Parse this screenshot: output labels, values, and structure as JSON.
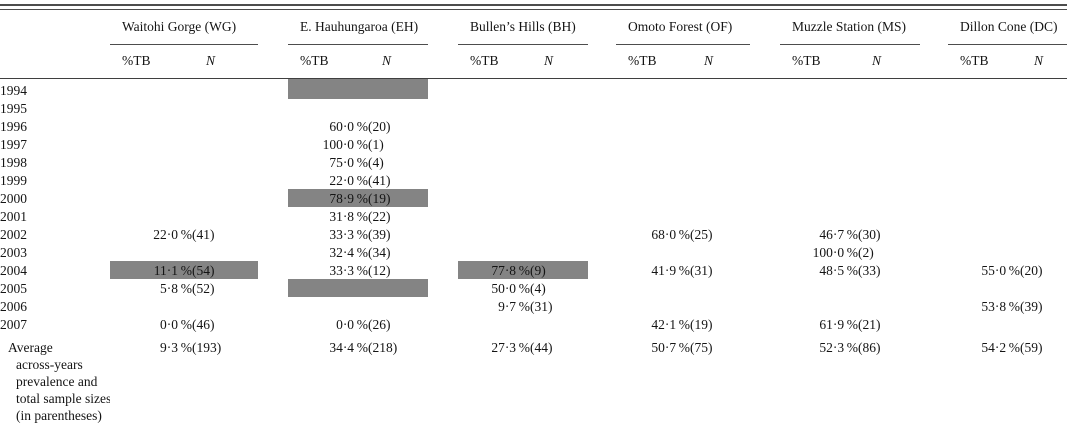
{
  "table": {
    "highlight_color": "#848484",
    "groups": [
      {
        "label": "Waitohi Gorge (WG)"
      },
      {
        "label": "E. Hauhungaroa (EH)"
      },
      {
        "label": "Bullen’s Hills (BH)"
      },
      {
        "label": "Omoto Forest (OF)"
      },
      {
        "label": "Muzzle Station (MS)"
      },
      {
        "label": "Dillon Cone (DC)"
      }
    ],
    "subheaders": {
      "pct": "%TB",
      "n": "N"
    },
    "rows": [
      {
        "year": "1994",
        "cells": [
          {
            "pct": "",
            "n": "",
            "hl": false
          },
          {
            "pct": "",
            "n": "",
            "hl": true
          },
          {
            "pct": "",
            "n": "",
            "hl": false
          },
          {
            "pct": "",
            "n": "",
            "hl": false
          },
          {
            "pct": "",
            "n": "",
            "hl": false
          },
          {
            "pct": "",
            "n": "",
            "hl": false
          }
        ]
      },
      {
        "year": "1995",
        "cells": [
          {
            "pct": "",
            "n": "",
            "hl": false
          },
          {
            "pct": "",
            "n": "",
            "hl": false
          },
          {
            "pct": "",
            "n": "",
            "hl": false
          },
          {
            "pct": "",
            "n": "",
            "hl": false
          },
          {
            "pct": "",
            "n": "",
            "hl": false
          },
          {
            "pct": "",
            "n": "",
            "hl": false
          }
        ]
      },
      {
        "year": "1996",
        "cells": [
          {
            "pct": "",
            "n": "",
            "hl": false
          },
          {
            "pct": "60·0 %",
            "n": "(20)",
            "hl": false
          },
          {
            "pct": "",
            "n": "",
            "hl": false
          },
          {
            "pct": "",
            "n": "",
            "hl": false
          },
          {
            "pct": "",
            "n": "",
            "hl": false
          },
          {
            "pct": "",
            "n": "",
            "hl": false
          }
        ]
      },
      {
        "year": "1997",
        "cells": [
          {
            "pct": "",
            "n": "",
            "hl": false
          },
          {
            "pct": "100·0 %",
            "n": "(1)",
            "hl": false
          },
          {
            "pct": "",
            "n": "",
            "hl": false
          },
          {
            "pct": "",
            "n": "",
            "hl": false
          },
          {
            "pct": "",
            "n": "",
            "hl": false
          },
          {
            "pct": "",
            "n": "",
            "hl": false
          }
        ]
      },
      {
        "year": "1998",
        "cells": [
          {
            "pct": "",
            "n": "",
            "hl": false
          },
          {
            "pct": "75·0 %",
            "n": "(4)",
            "hl": false
          },
          {
            "pct": "",
            "n": "",
            "hl": false
          },
          {
            "pct": "",
            "n": "",
            "hl": false
          },
          {
            "pct": "",
            "n": "",
            "hl": false
          },
          {
            "pct": "",
            "n": "",
            "hl": false
          }
        ]
      },
      {
        "year": "1999",
        "cells": [
          {
            "pct": "",
            "n": "",
            "hl": false
          },
          {
            "pct": "22·0 %",
            "n": "(41)",
            "hl": false
          },
          {
            "pct": "",
            "n": "",
            "hl": false
          },
          {
            "pct": "",
            "n": "",
            "hl": false
          },
          {
            "pct": "",
            "n": "",
            "hl": false
          },
          {
            "pct": "",
            "n": "",
            "hl": false
          }
        ]
      },
      {
        "year": "2000",
        "cells": [
          {
            "pct": "",
            "n": "",
            "hl": false
          },
          {
            "pct": "78·9 %",
            "n": "(19)",
            "hl": true
          },
          {
            "pct": "",
            "n": "",
            "hl": false
          },
          {
            "pct": "",
            "n": "",
            "hl": false
          },
          {
            "pct": "",
            "n": "",
            "hl": false
          },
          {
            "pct": "",
            "n": "",
            "hl": false
          }
        ]
      },
      {
        "year": "2001",
        "cells": [
          {
            "pct": "",
            "n": "",
            "hl": false
          },
          {
            "pct": "31·8 %",
            "n": "(22)",
            "hl": false
          },
          {
            "pct": "",
            "n": "",
            "hl": false
          },
          {
            "pct": "",
            "n": "",
            "hl": false
          },
          {
            "pct": "",
            "n": "",
            "hl": false
          },
          {
            "pct": "",
            "n": "",
            "hl": false
          }
        ]
      },
      {
        "year": "2002",
        "cells": [
          {
            "pct": "22·0 %",
            "n": "(41)",
            "hl": false
          },
          {
            "pct": "33·3 %",
            "n": "(39)",
            "hl": false
          },
          {
            "pct": "",
            "n": "",
            "hl": false
          },
          {
            "pct": "68·0 %",
            "n": "(25)",
            "hl": false
          },
          {
            "pct": "46·7 %",
            "n": "(30)",
            "hl": false
          },
          {
            "pct": "",
            "n": "",
            "hl": false
          }
        ]
      },
      {
        "year": "2003",
        "cells": [
          {
            "pct": "",
            "n": "",
            "hl": false
          },
          {
            "pct": "32·4 %",
            "n": "(34)",
            "hl": false
          },
          {
            "pct": "",
            "n": "",
            "hl": false
          },
          {
            "pct": "",
            "n": "",
            "hl": false
          },
          {
            "pct": "100·0 %",
            "n": "(2)",
            "hl": false
          },
          {
            "pct": "",
            "n": "",
            "hl": false
          }
        ]
      },
      {
        "year": "2004",
        "cells": [
          {
            "pct": "11·1 %",
            "n": "(54)",
            "hl": true
          },
          {
            "pct": "33·3 %",
            "n": "(12)",
            "hl": false
          },
          {
            "pct": "77·8 %",
            "n": "(9)",
            "hl": true
          },
          {
            "pct": "41·9 %",
            "n": "(31)",
            "hl": false
          },
          {
            "pct": "48·5 %",
            "n": "(33)",
            "hl": false
          },
          {
            "pct": "55·0 %",
            "n": "(20)",
            "hl": false
          }
        ]
      },
      {
        "year": "2005",
        "cells": [
          {
            "pct": "5·8 %",
            "n": "(52)",
            "hl": false
          },
          {
            "pct": "",
            "n": "",
            "hl": true
          },
          {
            "pct": "50·0 %",
            "n": "(4)",
            "hl": false
          },
          {
            "pct": "",
            "n": "",
            "hl": false
          },
          {
            "pct": "",
            "n": "",
            "hl": false
          },
          {
            "pct": "",
            "n": "",
            "hl": false
          }
        ]
      },
      {
        "year": "2006",
        "cells": [
          {
            "pct": "",
            "n": "",
            "hl": false
          },
          {
            "pct": "",
            "n": "",
            "hl": false
          },
          {
            "pct": "9·7 %",
            "n": "(31)",
            "hl": false
          },
          {
            "pct": "",
            "n": "",
            "hl": false
          },
          {
            "pct": "",
            "n": "",
            "hl": false
          },
          {
            "pct": "53·8 %",
            "n": "(39)",
            "hl": false
          }
        ]
      },
      {
        "year": "2007",
        "cells": [
          {
            "pct": "0·0 %",
            "n": "(46)",
            "hl": false
          },
          {
            "pct": "0·0 %",
            "n": "(26)",
            "hl": false
          },
          {
            "pct": "",
            "n": "",
            "hl": false
          },
          {
            "pct": "42·1 %",
            "n": "(19)",
            "hl": false
          },
          {
            "pct": "61·9 %",
            "n": "(21)",
            "hl": false
          },
          {
            "pct": "",
            "n": "",
            "hl": false
          }
        ]
      }
    ],
    "average_row": {
      "label_lines": [
        "Average",
        "across-years",
        "prevalence and",
        "total sample sizes",
        "(in parentheses)"
      ],
      "cells": [
        {
          "pct": "9·3 %",
          "n": "(193)",
          "hl": false
        },
        {
          "pct": "34·4 %",
          "n": "(218)",
          "hl": false
        },
        {
          "pct": "27·3 %",
          "n": "(44)",
          "hl": false
        },
        {
          "pct": "50·7 %",
          "n": "(75)",
          "hl": false
        },
        {
          "pct": "52·3 %",
          "n": "(86)",
          "hl": false
        },
        {
          "pct": "54·2 %",
          "n": "(59)",
          "hl": false
        }
      ]
    }
  }
}
